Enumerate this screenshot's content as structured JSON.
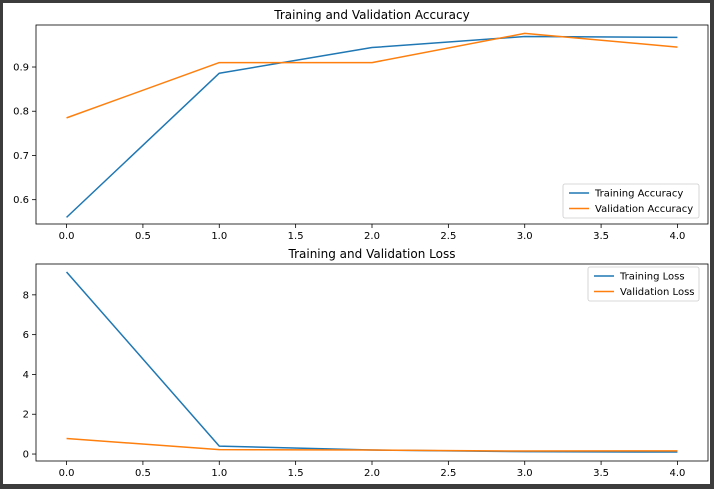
{
  "chart_data": [
    {
      "type": "line",
      "title": "Training and Validation Accuracy",
      "xlabel": "",
      "ylabel": "",
      "x": [
        0,
        1,
        2,
        3,
        4
      ],
      "xlim": [
        -0.2,
        4.2
      ],
      "ylim": [
        0.545,
        0.995
      ],
      "xticks": [
        0.0,
        0.5,
        1.0,
        1.5,
        2.0,
        2.5,
        3.0,
        3.5,
        4.0
      ],
      "xtick_labels": [
        "0.0",
        "0.5",
        "1.0",
        "1.5",
        "2.0",
        "2.5",
        "3.0",
        "3.5",
        "4.0"
      ],
      "yticks": [
        0.6,
        0.7,
        0.8,
        0.9
      ],
      "ytick_labels": [
        "0.6",
        "0.7",
        "0.8",
        "0.9"
      ],
      "grid": false,
      "legend_position": "lower-right",
      "series": [
        {
          "name": "Training Accuracy",
          "color": "#1f77b4",
          "values": [
            0.56,
            0.886,
            0.944,
            0.969,
            0.967
          ]
        },
        {
          "name": "Validation Accuracy",
          "color": "#ff7f0e",
          "values": [
            0.785,
            0.91,
            0.91,
            0.976,
            0.945
          ]
        }
      ]
    },
    {
      "type": "line",
      "title": "Training and Validation Loss",
      "xlabel": "",
      "ylabel": "",
      "x": [
        0,
        1,
        2,
        3,
        4
      ],
      "xlim": [
        -0.2,
        4.2
      ],
      "ylim": [
        -0.35,
        9.55
      ],
      "xticks": [
        0.0,
        0.5,
        1.0,
        1.5,
        2.0,
        2.5,
        3.0,
        3.5,
        4.0
      ],
      "xtick_labels": [
        "0.0",
        "0.5",
        "1.0",
        "1.5",
        "2.0",
        "2.5",
        "3.0",
        "3.5",
        "4.0"
      ],
      "yticks": [
        0,
        2,
        4,
        6,
        8
      ],
      "ytick_labels": [
        "0",
        "2",
        "4",
        "6",
        "8"
      ],
      "grid": false,
      "legend_position": "upper-right",
      "series": [
        {
          "name": "Training Loss",
          "color": "#1f77b4",
          "values": [
            9.15,
            0.4,
            0.2,
            0.12,
            0.1
          ]
        },
        {
          "name": "Validation Loss",
          "color": "#ff7f0e",
          "values": [
            0.78,
            0.22,
            0.2,
            0.15,
            0.16
          ]
        }
      ]
    }
  ]
}
